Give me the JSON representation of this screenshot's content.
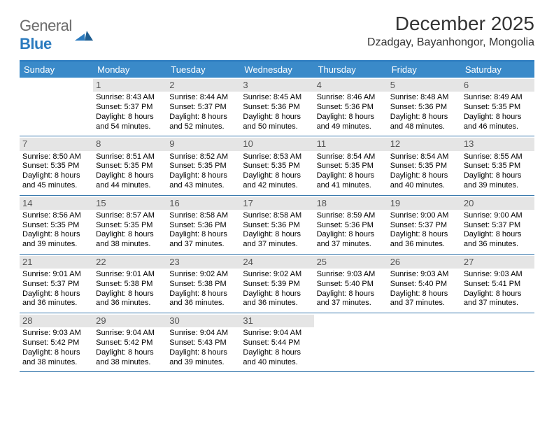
{
  "brand": {
    "part1": "General",
    "part2": "Blue"
  },
  "title": {
    "month": "December 2025",
    "location": "Dzadgay, Bayanhongor, Mongolia"
  },
  "colors": {
    "header_bg": "#3a8ac9",
    "header_border": "#2b7bbf",
    "week_border": "#3a7aae",
    "daynum_bg": "#e5e5e5",
    "text": "#000000",
    "brand_gray": "#6b6b6b",
    "brand_blue": "#2b7bbf"
  },
  "dow": [
    "Sunday",
    "Monday",
    "Tuesday",
    "Wednesday",
    "Thursday",
    "Friday",
    "Saturday"
  ],
  "weeks": [
    [
      {
        "n": "",
        "lines": []
      },
      {
        "n": "1",
        "lines": [
          "Sunrise: 8:43 AM",
          "Sunset: 5:37 PM",
          "Daylight: 8 hours",
          "and 54 minutes."
        ]
      },
      {
        "n": "2",
        "lines": [
          "Sunrise: 8:44 AM",
          "Sunset: 5:37 PM",
          "Daylight: 8 hours",
          "and 52 minutes."
        ]
      },
      {
        "n": "3",
        "lines": [
          "Sunrise: 8:45 AM",
          "Sunset: 5:36 PM",
          "Daylight: 8 hours",
          "and 50 minutes."
        ]
      },
      {
        "n": "4",
        "lines": [
          "Sunrise: 8:46 AM",
          "Sunset: 5:36 PM",
          "Daylight: 8 hours",
          "and 49 minutes."
        ]
      },
      {
        "n": "5",
        "lines": [
          "Sunrise: 8:48 AM",
          "Sunset: 5:36 PM",
          "Daylight: 8 hours",
          "and 48 minutes."
        ]
      },
      {
        "n": "6",
        "lines": [
          "Sunrise: 8:49 AM",
          "Sunset: 5:35 PM",
          "Daylight: 8 hours",
          "and 46 minutes."
        ]
      }
    ],
    [
      {
        "n": "7",
        "lines": [
          "Sunrise: 8:50 AM",
          "Sunset: 5:35 PM",
          "Daylight: 8 hours",
          "and 45 minutes."
        ]
      },
      {
        "n": "8",
        "lines": [
          "Sunrise: 8:51 AM",
          "Sunset: 5:35 PM",
          "Daylight: 8 hours",
          "and 44 minutes."
        ]
      },
      {
        "n": "9",
        "lines": [
          "Sunrise: 8:52 AM",
          "Sunset: 5:35 PM",
          "Daylight: 8 hours",
          "and 43 minutes."
        ]
      },
      {
        "n": "10",
        "lines": [
          "Sunrise: 8:53 AM",
          "Sunset: 5:35 PM",
          "Daylight: 8 hours",
          "and 42 minutes."
        ]
      },
      {
        "n": "11",
        "lines": [
          "Sunrise: 8:54 AM",
          "Sunset: 5:35 PM",
          "Daylight: 8 hours",
          "and 41 minutes."
        ]
      },
      {
        "n": "12",
        "lines": [
          "Sunrise: 8:54 AM",
          "Sunset: 5:35 PM",
          "Daylight: 8 hours",
          "and 40 minutes."
        ]
      },
      {
        "n": "13",
        "lines": [
          "Sunrise: 8:55 AM",
          "Sunset: 5:35 PM",
          "Daylight: 8 hours",
          "and 39 minutes."
        ]
      }
    ],
    [
      {
        "n": "14",
        "lines": [
          "Sunrise: 8:56 AM",
          "Sunset: 5:35 PM",
          "Daylight: 8 hours",
          "and 39 minutes."
        ]
      },
      {
        "n": "15",
        "lines": [
          "Sunrise: 8:57 AM",
          "Sunset: 5:35 PM",
          "Daylight: 8 hours",
          "and 38 minutes."
        ]
      },
      {
        "n": "16",
        "lines": [
          "Sunrise: 8:58 AM",
          "Sunset: 5:36 PM",
          "Daylight: 8 hours",
          "and 37 minutes."
        ]
      },
      {
        "n": "17",
        "lines": [
          "Sunrise: 8:58 AM",
          "Sunset: 5:36 PM",
          "Daylight: 8 hours",
          "and 37 minutes."
        ]
      },
      {
        "n": "18",
        "lines": [
          "Sunrise: 8:59 AM",
          "Sunset: 5:36 PM",
          "Daylight: 8 hours",
          "and 37 minutes."
        ]
      },
      {
        "n": "19",
        "lines": [
          "Sunrise: 9:00 AM",
          "Sunset: 5:37 PM",
          "Daylight: 8 hours",
          "and 36 minutes."
        ]
      },
      {
        "n": "20",
        "lines": [
          "Sunrise: 9:00 AM",
          "Sunset: 5:37 PM",
          "Daylight: 8 hours",
          "and 36 minutes."
        ]
      }
    ],
    [
      {
        "n": "21",
        "lines": [
          "Sunrise: 9:01 AM",
          "Sunset: 5:37 PM",
          "Daylight: 8 hours",
          "and 36 minutes."
        ]
      },
      {
        "n": "22",
        "lines": [
          "Sunrise: 9:01 AM",
          "Sunset: 5:38 PM",
          "Daylight: 8 hours",
          "and 36 minutes."
        ]
      },
      {
        "n": "23",
        "lines": [
          "Sunrise: 9:02 AM",
          "Sunset: 5:38 PM",
          "Daylight: 8 hours",
          "and 36 minutes."
        ]
      },
      {
        "n": "24",
        "lines": [
          "Sunrise: 9:02 AM",
          "Sunset: 5:39 PM",
          "Daylight: 8 hours",
          "and 36 minutes."
        ]
      },
      {
        "n": "25",
        "lines": [
          "Sunrise: 9:03 AM",
          "Sunset: 5:40 PM",
          "Daylight: 8 hours",
          "and 37 minutes."
        ]
      },
      {
        "n": "26",
        "lines": [
          "Sunrise: 9:03 AM",
          "Sunset: 5:40 PM",
          "Daylight: 8 hours",
          "and 37 minutes."
        ]
      },
      {
        "n": "27",
        "lines": [
          "Sunrise: 9:03 AM",
          "Sunset: 5:41 PM",
          "Daylight: 8 hours",
          "and 37 minutes."
        ]
      }
    ],
    [
      {
        "n": "28",
        "lines": [
          "Sunrise: 9:03 AM",
          "Sunset: 5:42 PM",
          "Daylight: 8 hours",
          "and 38 minutes."
        ]
      },
      {
        "n": "29",
        "lines": [
          "Sunrise: 9:04 AM",
          "Sunset: 5:42 PM",
          "Daylight: 8 hours",
          "and 38 minutes."
        ]
      },
      {
        "n": "30",
        "lines": [
          "Sunrise: 9:04 AM",
          "Sunset: 5:43 PM",
          "Daylight: 8 hours",
          "and 39 minutes."
        ]
      },
      {
        "n": "31",
        "lines": [
          "Sunrise: 9:04 AM",
          "Sunset: 5:44 PM",
          "Daylight: 8 hours",
          "and 40 minutes."
        ]
      },
      {
        "n": "",
        "lines": []
      },
      {
        "n": "",
        "lines": []
      },
      {
        "n": "",
        "lines": []
      }
    ]
  ]
}
